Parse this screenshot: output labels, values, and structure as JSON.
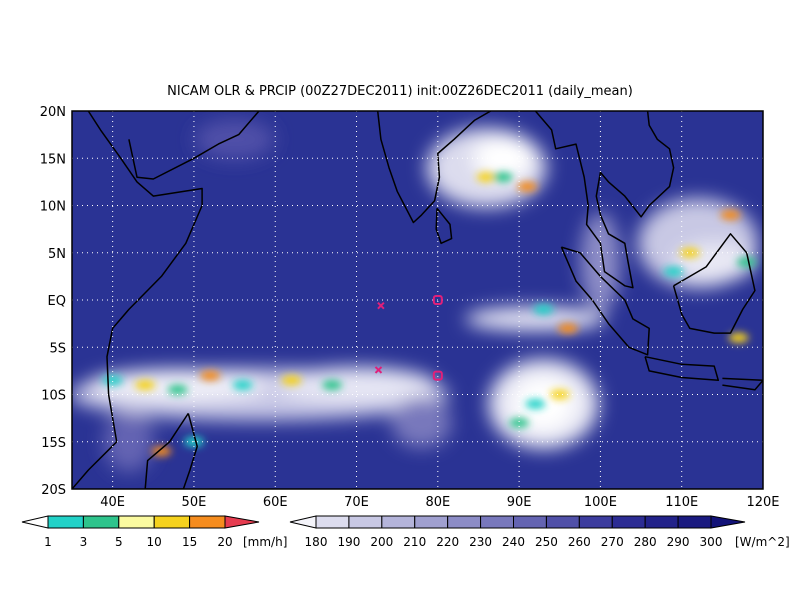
{
  "title": "NICAM OLR & PRCIP (00Z27DEC2011) init:00Z26DEC2011 (daily_mean)",
  "lat_labels": [
    "20N",
    "15N",
    "10N",
    "5N",
    "EQ",
    "5S",
    "10S",
    "15S",
    "20S"
  ],
  "lon_labels": [
    "40E",
    "50E",
    "60E",
    "70E",
    "80E",
    "90E",
    "100E",
    "110E",
    "120E"
  ],
  "precip_colorbar": {
    "labels": [
      "1",
      "3",
      "5",
      "10",
      "15",
      "20"
    ],
    "unit": "[mm/h]",
    "colors": [
      "#ffffff",
      "#22d2c8",
      "#2ec48c",
      "#fafaa0",
      "#f5d21e",
      "#f58c1e",
      "#e63c50"
    ]
  },
  "olr_colorbar": {
    "labels": [
      "180",
      "190",
      "200",
      "210",
      "220",
      "230",
      "240",
      "250",
      "260",
      "270",
      "280",
      "290",
      "300"
    ],
    "unit": "[W/m^2]",
    "colors": [
      "#f4f4fa",
      "#dcdcee",
      "#c8c8e4",
      "#b4b4da",
      "#a0a0d0",
      "#8c8cc6",
      "#7878bc",
      "#6464b2",
      "#5050a8",
      "#3c3c9e",
      "#2c2c94",
      "#22228a",
      "#1a1a80",
      "#121278"
    ]
  }
}
